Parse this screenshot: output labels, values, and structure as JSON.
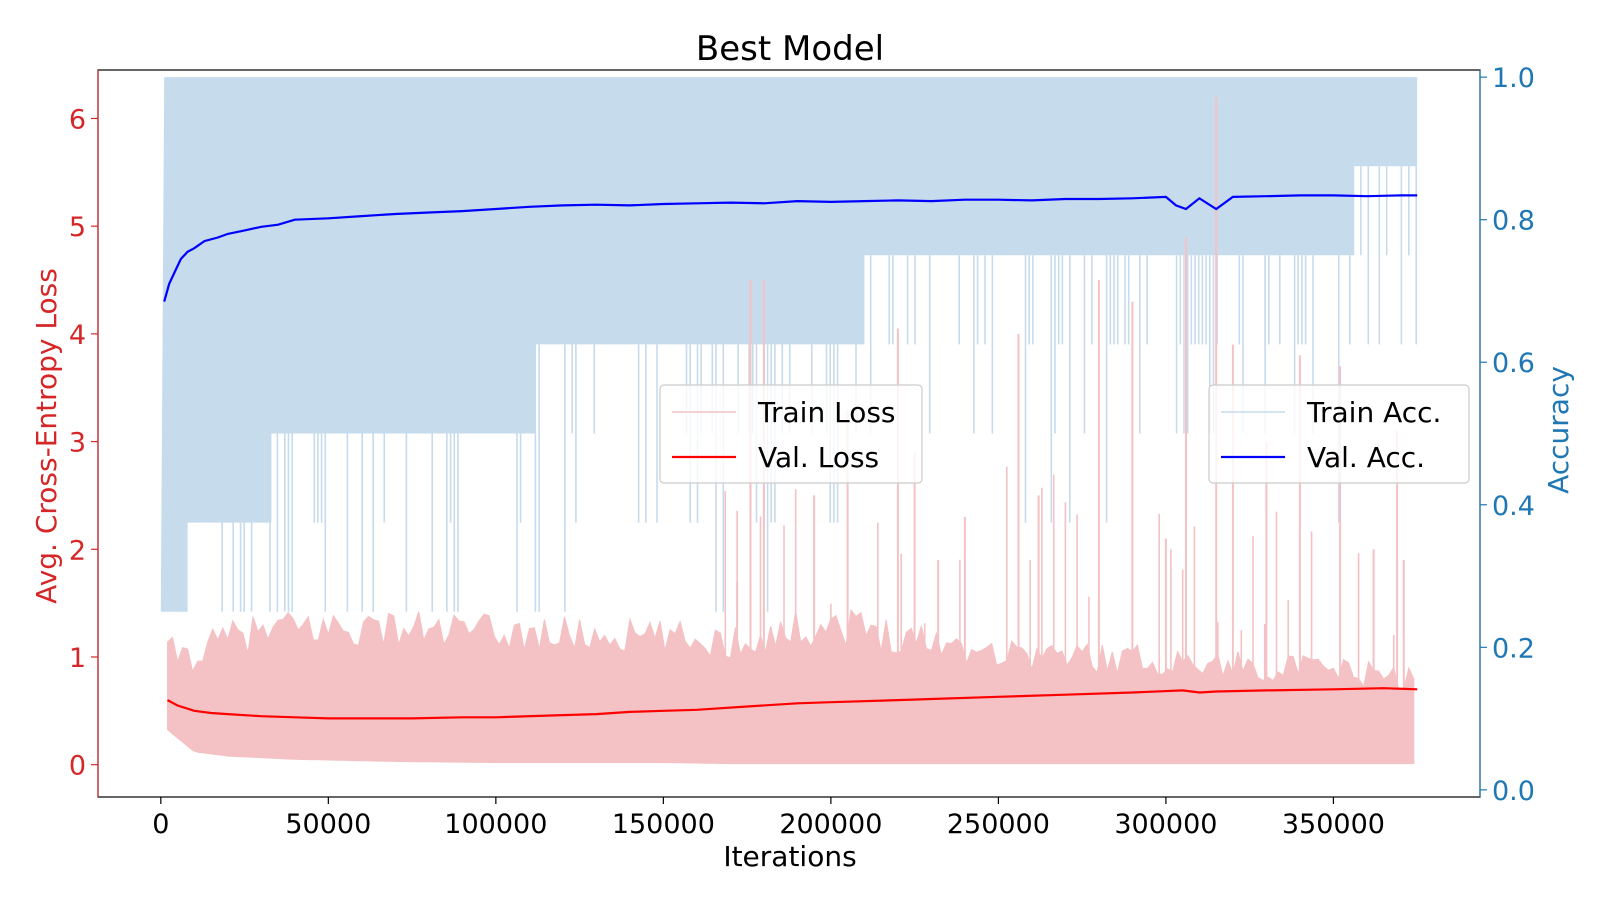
{
  "chart_data": {
    "type": "line",
    "title": "Best Model",
    "xlabel": "Iterations",
    "ylabel_left": "Avg. Cross-Entropy Loss",
    "ylabel_right": "Accuracy",
    "xlim": [
      -18750,
      393750
    ],
    "ylim_left": [
      -0.3,
      6.45
    ],
    "ylim_right": [
      -0.01,
      1.01
    ],
    "x_ticks": [
      0,
      50000,
      100000,
      150000,
      200000,
      250000,
      300000,
      350000
    ],
    "x_tick_labels": [
      "0",
      "50000",
      "100000",
      "150000",
      "200000",
      "250000",
      "300000",
      "350000"
    ],
    "y_left_ticks": [
      0,
      1,
      2,
      3,
      4,
      5,
      6
    ],
    "y_left_tick_labels": [
      "0",
      "1",
      "2",
      "3",
      "4",
      "5",
      "6"
    ],
    "y_right_ticks": [
      0.0,
      0.2,
      0.4,
      0.6,
      0.8,
      1.0
    ],
    "y_right_tick_labels": [
      "0.0",
      "0.2",
      "0.4",
      "0.6",
      "0.8",
      "1.0"
    ],
    "grid": false,
    "legend_left": {
      "placement": "center",
      "entries": [
        "Train Loss",
        "Val. Loss"
      ]
    },
    "legend_right": {
      "placement": "center-right",
      "entries": [
        "Train Acc.",
        "Val. Acc."
      ]
    },
    "colors": {
      "left_axis": "#d62728",
      "right_axis": "#1f77b4",
      "train_loss": "#f4c2c4",
      "val_loss": "#ff0000",
      "train_acc": "#c6dbec",
      "val_acc": "#0000ff"
    },
    "series": [
      {
        "name": "Val. Loss",
        "axis": "left",
        "x": [
          2000,
          5000,
          10000,
          15000,
          20000,
          30000,
          40000,
          50000,
          60000,
          75000,
          90000,
          100000,
          120000,
          130000,
          140000,
          150000,
          160000,
          175000,
          190000,
          200000,
          220000,
          230000,
          250000,
          270000,
          290000,
          305000,
          310000,
          315000,
          330000,
          350000,
          365000,
          375000
        ],
        "values": [
          0.6,
          0.55,
          0.5,
          0.48,
          0.47,
          0.45,
          0.44,
          0.43,
          0.43,
          0.43,
          0.44,
          0.44,
          0.46,
          0.47,
          0.49,
          0.5,
          0.51,
          0.54,
          0.57,
          0.58,
          0.6,
          0.61,
          0.63,
          0.65,
          0.67,
          0.69,
          0.67,
          0.68,
          0.69,
          0.7,
          0.71,
          0.7
        ]
      },
      {
        "name": "Val. Acc.",
        "axis": "right",
        "x": [
          1000,
          2500,
          4000,
          6000,
          8000,
          10000,
          13000,
          17000,
          20000,
          25000,
          30000,
          35000,
          40000,
          50000,
          60000,
          70000,
          80000,
          90000,
          100000,
          110000,
          120000,
          130000,
          140000,
          150000,
          160000,
          170000,
          180000,
          190000,
          200000,
          210000,
          220000,
          230000,
          240000,
          250000,
          260000,
          270000,
          280000,
          290000,
          300000,
          303000,
          306000,
          310000,
          315000,
          320000,
          330000,
          340000,
          350000,
          360000,
          370000,
          375000
        ],
        "values": [
          0.685,
          0.71,
          0.725,
          0.745,
          0.755,
          0.76,
          0.77,
          0.775,
          0.78,
          0.785,
          0.79,
          0.793,
          0.8,
          0.802,
          0.805,
          0.808,
          0.81,
          0.812,
          0.815,
          0.818,
          0.82,
          0.821,
          0.82,
          0.822,
          0.823,
          0.824,
          0.823,
          0.826,
          0.825,
          0.826,
          0.827,
          0.826,
          0.828,
          0.828,
          0.827,
          0.829,
          0.829,
          0.83,
          0.832,
          0.82,
          0.815,
          0.83,
          0.815,
          0.832,
          0.833,
          0.834,
          0.834,
          0.833,
          0.834,
          0.834
        ]
      },
      {
        "name": "Train Loss",
        "axis": "left",
        "kind": "noisy-band",
        "x": [
          1000,
          10000,
          20000,
          40000,
          70000,
          100000,
          150000,
          170000,
          200000,
          250000,
          300000,
          350000,
          375000
        ],
        "lower": [
          0.35,
          0.12,
          0.08,
          0.05,
          0.03,
          0.02,
          0.02,
          0.01,
          0.01,
          0.01,
          0.01,
          0.01,
          0.01
        ],
        "upper": [
          1.2,
          1.15,
          1.35,
          1.45,
          1.45,
          1.4,
          1.35,
          1.3,
          1.5,
          1.2,
          1.1,
          1.0,
          0.9
        ],
        "spikes": [
          [
            172000,
            1.7
          ],
          [
            176000,
            4.5
          ],
          [
            180000,
            4.5
          ],
          [
            195000,
            2.5
          ],
          [
            205000,
            3.3
          ],
          [
            220000,
            4.05
          ],
          [
            225000,
            2.9
          ],
          [
            232000,
            1.9
          ],
          [
            240000,
            2.3
          ],
          [
            256000,
            4.0
          ],
          [
            262000,
            2.5
          ],
          [
            280000,
            4.5
          ],
          [
            290000,
            4.3
          ],
          [
            300000,
            2.1
          ],
          [
            306000,
            4.9
          ],
          [
            315000,
            6.2
          ],
          [
            320000,
            3.9
          ],
          [
            330000,
            3.0
          ],
          [
            340000,
            3.8
          ],
          [
            352000,
            3.7
          ],
          [
            362000,
            2.0
          ],
          [
            369000,
            3.1
          ],
          [
            371000,
            1.9
          ]
        ]
      },
      {
        "name": "Train Acc.",
        "axis": "right",
        "kind": "stepped-band",
        "values_top": 1.0,
        "lower_steps": [
          [
            0,
            0.25
          ],
          [
            2000,
            0.25
          ],
          [
            8000,
            0.375
          ],
          [
            24000,
            0.375
          ],
          [
            24000,
            0.375
          ],
          [
            33000,
            0.5
          ],
          [
            62000,
            0.5
          ],
          [
            62000,
            0.5
          ],
          [
            112000,
            0.625
          ],
          [
            185000,
            0.625
          ],
          [
            185000,
            0.625
          ],
          [
            210000,
            0.75
          ],
          [
            355000,
            0.75
          ],
          [
            356000,
            0.875
          ],
          [
            375000,
            0.875
          ]
        ]
      }
    ]
  }
}
